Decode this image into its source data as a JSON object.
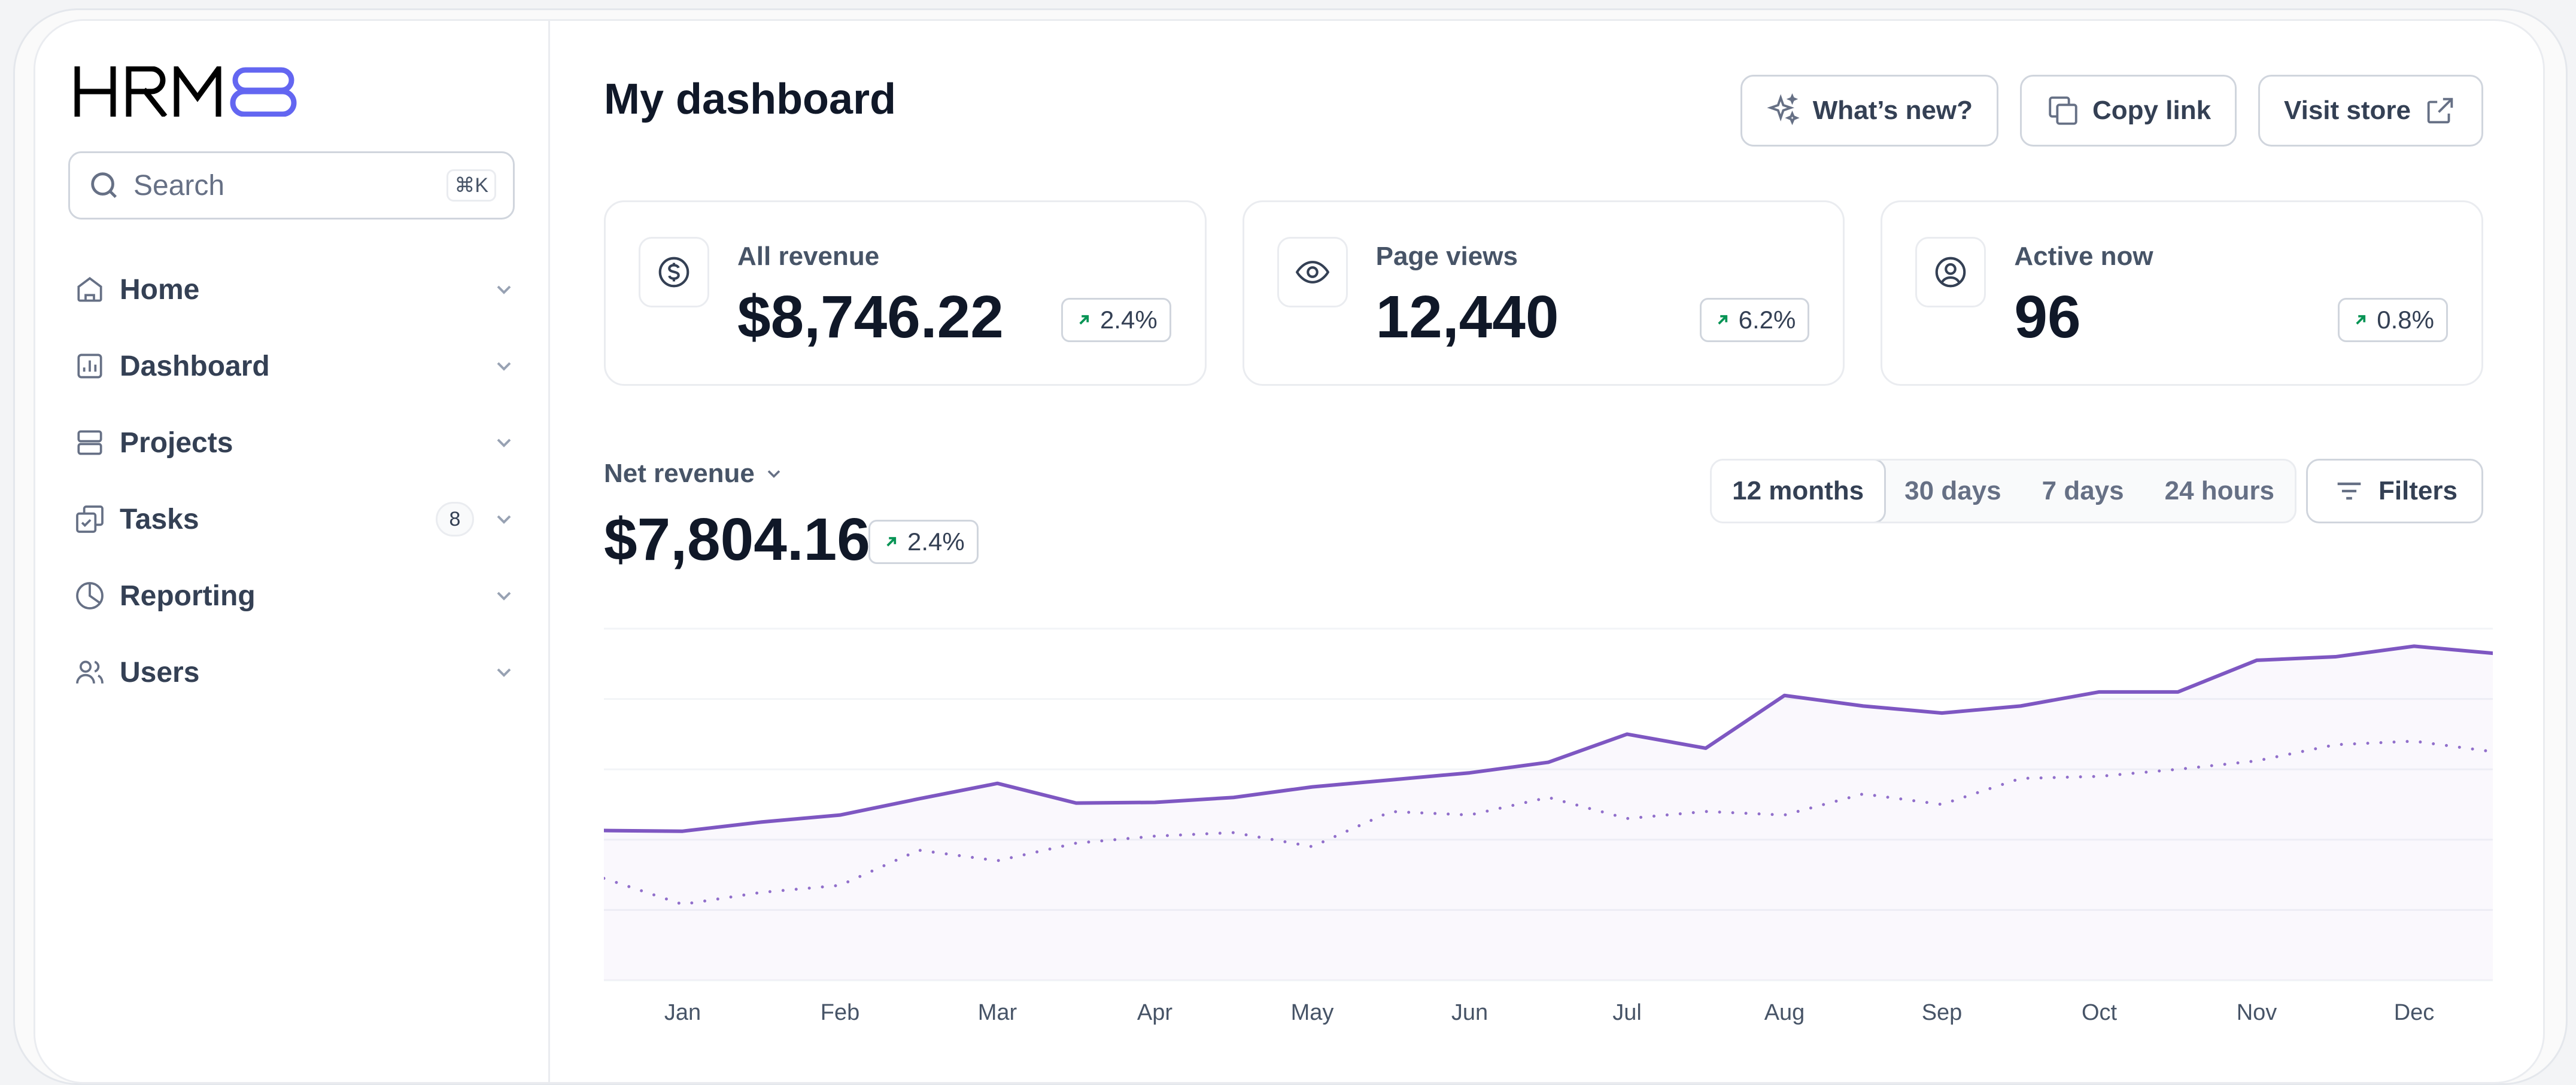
{
  "brand": {
    "logo_text": "HRM8",
    "accent": "#6366f1"
  },
  "sidebar": {
    "search": {
      "placeholder": "Search",
      "shortcut": "⌘K"
    },
    "items": [
      {
        "label": "Home",
        "icon": "home-icon"
      },
      {
        "label": "Dashboard",
        "icon": "bar-chart-icon"
      },
      {
        "label": "Projects",
        "icon": "layers-icon"
      },
      {
        "label": "Tasks",
        "icon": "check-copy-icon",
        "badge": "8"
      },
      {
        "label": "Reporting",
        "icon": "pie-chart-icon"
      },
      {
        "label": "Users",
        "icon": "users-icon"
      }
    ]
  },
  "header": {
    "title": "My dashboard",
    "buttons": {
      "whats_new": "What’s new?",
      "copy_link": "Copy link",
      "visit_store": "Visit store"
    }
  },
  "metrics": [
    {
      "label": "All revenue",
      "value": "$8,746.22",
      "change": "2.4%",
      "icon": "dollar-circle-icon"
    },
    {
      "label": "Page views",
      "value": "12,440",
      "change": "6.2%",
      "icon": "eye-icon"
    },
    {
      "label": "Active now",
      "value": "96",
      "change": "0.8%",
      "icon": "user-circle-icon"
    }
  ],
  "net_revenue": {
    "label": "Net revenue",
    "value": "$7,804.16",
    "change": "2.4%"
  },
  "time_ranges": {
    "options": [
      "12 months",
      "30 days",
      "7 days",
      "24 hours"
    ],
    "selected": "12 months"
  },
  "filters_label": "Filters",
  "colors": {
    "line": "#7e57c2",
    "grid": "#f2f4f7",
    "up_arrow": "#079455"
  },
  "chart_data": {
    "type": "line",
    "categories": [
      "Jan",
      "Feb",
      "Mar",
      "Apr",
      "May",
      "Jun",
      "Jul",
      "Aug",
      "Sep",
      "Oct",
      "Nov",
      "Dec"
    ],
    "ylim": [
      0,
      5
    ],
    "grid": true,
    "series": [
      {
        "style": "solid",
        "x": [
          -0.5,
          0,
          0.5,
          1,
          1.5,
          2,
          2.5,
          3,
          3.5,
          4,
          4.5,
          5,
          5.5,
          6,
          6.5,
          7,
          7.5,
          8,
          8.5,
          9,
          9.5,
          10,
          10.5,
          11,
          11.5
        ],
        "values": [
          2.13,
          2.12,
          2.25,
          2.35,
          2.58,
          2.8,
          2.52,
          2.53,
          2.6,
          2.75,
          2.85,
          2.95,
          3.1,
          3.5,
          3.3,
          4.05,
          3.9,
          3.8,
          3.9,
          4.1,
          4.1,
          4.55,
          4.6,
          4.75,
          4.65
        ]
      },
      {
        "style": "dotted",
        "x": [
          -0.5,
          0,
          0.5,
          1,
          1.5,
          2,
          2.5,
          3,
          3.5,
          4,
          4.5,
          5,
          5.5,
          6,
          6.5,
          7,
          7.5,
          8,
          8.5,
          9,
          9.5,
          10,
          10.5,
          11,
          11.5
        ],
        "values": [
          1.45,
          1.08,
          1.25,
          1.35,
          1.85,
          1.7,
          1.95,
          2.05,
          2.1,
          1.9,
          2.4,
          2.35,
          2.6,
          2.3,
          2.4,
          2.35,
          2.65,
          2.5,
          2.87,
          2.9,
          3.0,
          3.12,
          3.35,
          3.4,
          3.25
        ]
      }
    ]
  }
}
